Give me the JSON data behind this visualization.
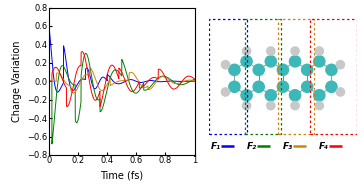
{
  "title": "",
  "xlabel": "Time (fs)",
  "ylabel": "Charge Variation",
  "xlim": [
    0,
    1
  ],
  "ylim": [
    -0.8,
    0.8
  ],
  "xticks": [
    0,
    0.2,
    0.4,
    0.6,
    0.8,
    1
  ],
  "yticks": [
    -0.8,
    -0.6,
    -0.4,
    -0.2,
    0,
    0.2,
    0.4,
    0.6,
    0.8
  ],
  "line_colors": [
    "blue",
    "green",
    "#D4820A",
    "red"
  ],
  "legend_labels": [
    "F₁",
    "F₂",
    "F₃",
    "F₄"
  ],
  "legend_line_colors": [
    "blue",
    "green",
    "#D4820A",
    "red"
  ],
  "box_colors": [
    "blue",
    "green",
    "#D4820A",
    "red"
  ],
  "teal_color": "#3DB8B8",
  "h_color": "#C8C8C8",
  "bond_color": "#888888",
  "background": "#ffffff",
  "figsize": [
    3.63,
    1.89
  ],
  "dpi": 100
}
